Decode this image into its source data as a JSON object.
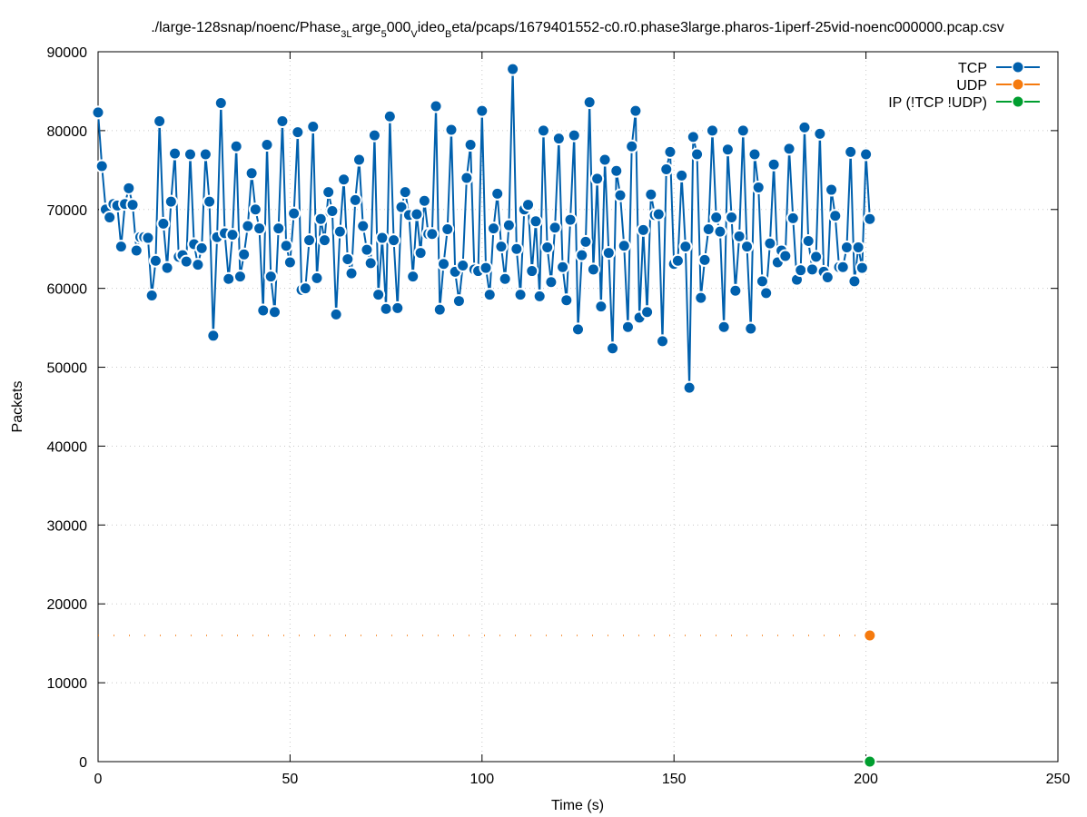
{
  "chart_data": {
    "type": "line",
    "title": {
      "prefix": "./large-128snap/noenc/Phase",
      "sub1": "3L",
      "mid1": "arge",
      "sub2": "5",
      "mid2": "000",
      "sub3": "V",
      "mid3": "ideo",
      "sub4": "B",
      "suffix": "eta/pcaps/1679401552-c0.r0.phase3large.pharos-1iperf-25vid-noenc000000.pcap.csv"
    },
    "xlabel": "Time (s)",
    "ylabel": "Packets",
    "xlim": [
      0,
      250
    ],
    "ylim": [
      0,
      90000
    ],
    "xticks": [
      "0",
      "50",
      "100",
      "150",
      "200",
      "250"
    ],
    "yticks": [
      "0",
      "10000",
      "20000",
      "30000",
      "40000",
      "50000",
      "60000",
      "70000",
      "80000",
      "90000"
    ],
    "grid": true,
    "legend_position": "top-right",
    "series": [
      {
        "name": "TCP",
        "color": "#0060ad",
        "x": [
          0,
          1,
          2,
          3,
          4,
          5,
          6,
          7,
          8,
          9,
          10,
          11,
          12,
          13,
          14,
          15,
          16,
          17,
          18,
          19,
          20,
          21,
          22,
          23,
          24,
          25,
          26,
          27,
          28,
          29,
          30,
          31,
          32,
          33,
          34,
          35,
          36,
          37,
          38,
          39,
          40,
          41,
          42,
          43,
          44,
          45,
          46,
          47,
          48,
          49,
          50,
          51,
          52,
          53,
          54,
          55,
          56,
          57,
          58,
          59,
          60,
          61,
          62,
          63,
          64,
          65,
          66,
          67,
          68,
          69,
          70,
          71,
          72,
          73,
          74,
          75,
          76,
          77,
          78,
          79,
          80,
          81,
          82,
          83,
          84,
          85,
          86,
          87,
          88,
          89,
          90,
          91,
          92,
          93,
          94,
          95,
          96,
          97,
          98,
          99,
          100,
          101,
          102,
          103,
          104,
          105,
          106,
          107,
          108,
          109,
          110,
          111,
          112,
          113,
          114,
          115,
          116,
          117,
          118,
          119,
          120,
          121,
          122,
          123,
          124,
          125,
          126,
          127,
          128,
          129,
          130,
          131,
          132,
          133,
          134,
          135,
          136,
          137,
          138,
          139,
          140,
          141,
          142,
          143,
          144,
          145,
          146,
          147,
          148,
          149,
          150,
          151,
          152,
          153,
          154,
          155,
          156,
          157,
          158,
          159,
          160,
          161,
          162,
          163,
          164,
          165,
          166,
          167,
          168,
          169,
          170,
          171,
          172,
          173,
          174,
          175,
          176,
          177,
          178,
          179,
          180,
          181,
          182,
          183,
          184,
          185,
          186,
          187,
          188,
          189,
          190,
          191,
          192,
          193,
          194,
          195,
          196,
          197,
          198,
          199,
          200,
          201
        ],
        "y": [
          82300,
          75500,
          70000,
          69000,
          70700,
          70500,
          65300,
          70700,
          72700,
          70600,
          64800,
          66500,
          66500,
          66400,
          59100,
          63500,
          81200,
          68200,
          62600,
          71000,
          77100,
          64000,
          64200,
          63400,
          77000,
          65600,
          63000,
          65100,
          77000,
          71000,
          54000,
          66500,
          83500,
          67000,
          61200,
          66800,
          78000,
          61500,
          64300,
          67900,
          74600,
          70000,
          67600,
          57200,
          78200,
          61500,
          57000,
          67600,
          81200,
          65400,
          63300,
          69500,
          79800,
          59800,
          60000,
          66100,
          80500,
          61300,
          68800,
          66100,
          72200,
          69800,
          56700,
          67200,
          73800,
          63700,
          61900,
          71200,
          76300,
          67900,
          64900,
          63200,
          79400,
          59200,
          66400,
          57400,
          81800,
          66100,
          57500,
          70300,
          72200,
          69300,
          61500,
          69400,
          64500,
          71100,
          66900,
          66900,
          83100,
          57300,
          63100,
          67500,
          80100,
          62100,
          58400,
          62900,
          74000,
          78200,
          62400,
          62200,
          82500,
          62600,
          59200,
          67600,
          72000,
          65300,
          61200,
          68000,
          87800,
          65000,
          59200,
          70000,
          70600,
          62200,
          68500,
          59000,
          80000,
          65200,
          60800,
          67700,
          79000,
          62700,
          58500,
          68700,
          79400,
          54800,
          64200,
          65900,
          83600,
          62400,
          73900,
          57700,
          76300,
          64500,
          52400,
          74900,
          71800,
          65400,
          55100,
          78000,
          82500,
          56300,
          67400,
          57000,
          71900,
          69300,
          69400,
          53300,
          75100,
          77300,
          63100,
          63500,
          74300,
          65300,
          47400,
          79200,
          77000,
          58800,
          63600,
          67500,
          80000,
          69000,
          67200,
          55100,
          77600,
          69000,
          59700,
          66600,
          80000,
          65300,
          54900,
          77000,
          72800,
          60900,
          59400,
          65700,
          75700,
          63300,
          64800,
          64100,
          77700,
          68900,
          61100,
          62300,
          80400,
          66000,
          62400,
          64000,
          79600,
          62100,
          61400,
          72500,
          69200,
          62700,
          62700,
          65200,
          77300,
          60900,
          65200,
          62600,
          77000,
          68800
        ]
      },
      {
        "name": "UDP",
        "color": "#f57a0e",
        "x": [
          0,
          5,
          10,
          15,
          20,
          25,
          30,
          35,
          40,
          45,
          50,
          55,
          60,
          65,
          70,
          75,
          80,
          85,
          90,
          95,
          100,
          105,
          110,
          115,
          120,
          125,
          130,
          135,
          140,
          145,
          150,
          155,
          160,
          165,
          170,
          175,
          180,
          185,
          190,
          195,
          200,
          201
        ],
        "y": [
          16000,
          16000,
          16000,
          16000,
          16000,
          16000,
          16000,
          16000,
          16000,
          16000,
          16000,
          16000,
          16000,
          16000,
          16000,
          16000,
          16000,
          16000,
          16000,
          16000,
          16000,
          16000,
          16000,
          16000,
          16000,
          16000,
          16000,
          16000,
          16000,
          16000,
          16000,
          16000,
          16000,
          16000,
          16000,
          16000,
          16000,
          16000,
          16000,
          16000,
          16000,
          16000
        ]
      },
      {
        "name": "IP (!TCP  !UDP)",
        "color": "#009e2f",
        "x": [
          201
        ],
        "y": [
          0
        ]
      }
    ]
  }
}
